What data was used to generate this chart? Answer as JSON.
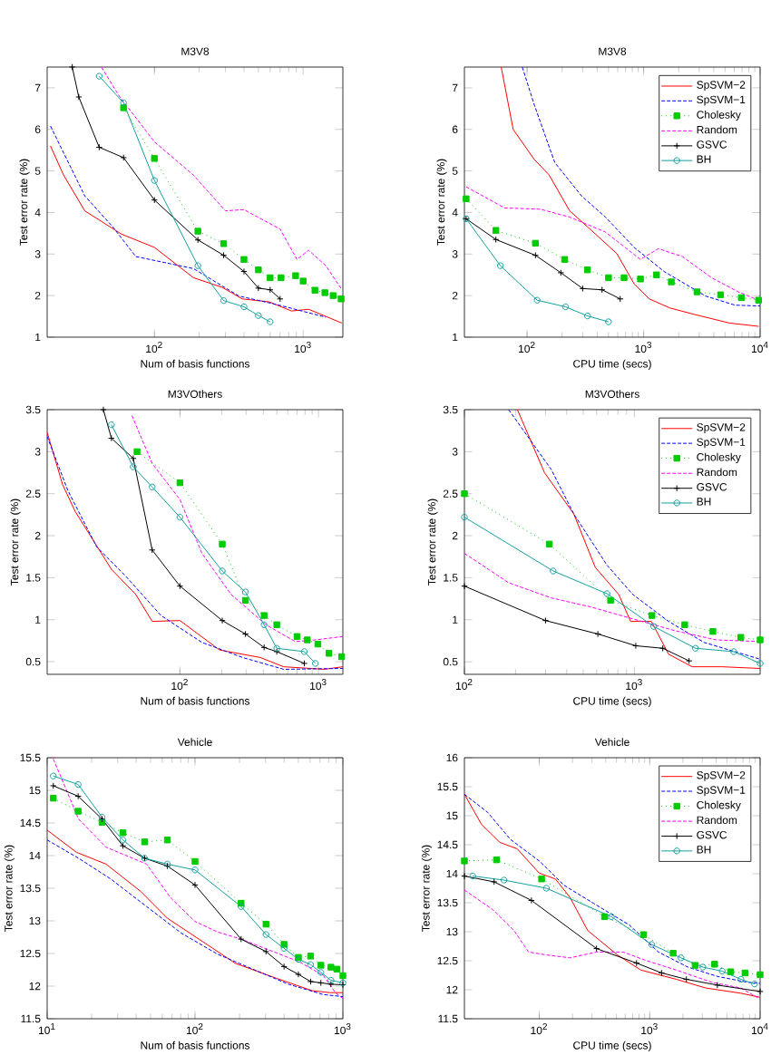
{
  "chart_data": [
    {
      "type": "line",
      "title": "M3V8",
      "xlabel": "Num of basis functions",
      "ylabel": "Test error rate (%)",
      "log": "x",
      "xlim": [
        19,
        1850
      ],
      "ylim": [
        1,
        7.5
      ],
      "xticks": [
        {
          "value": 100,
          "label": "10$^{2}$"
        },
        {
          "value": 1000,
          "label": "10$^{3}$"
        }
      ],
      "yticks": [
        1,
        2,
        3,
        4,
        5,
        6,
        7
      ],
      "series": [
        {
          "color": "#ff0000",
          "line_style": "solid",
          "marker": "none",
          "x": [
            20,
            24.5,
            34,
            60,
            100,
            183,
            285,
            390,
            590,
            835,
            1090,
            1820
          ],
          "values": [
            5.6,
            4.9,
            4.04,
            3.48,
            3.16,
            2.43,
            2.2,
            1.92,
            1.85,
            1.63,
            1.67,
            1.34
          ]
        },
        {
          "color": "#0000ff",
          "line_style": "dashed",
          "marker": "none",
          "x": [
            20,
            34,
            52,
            75,
            183,
            370,
            690,
            1420
          ],
          "values": [
            6.08,
            4.4,
            3.67,
            2.94,
            2.65,
            1.99,
            1.77,
            1.48
          ]
        },
        {
          "color": "#00cc00",
          "line_style": "dotted",
          "marker": "square",
          "x": [
            62,
            100,
            196,
            292,
            400,
            500,
            600,
            710,
            890,
            1000,
            1200,
            1400,
            1590,
            1800
          ],
          "values": [
            6.52,
            5.3,
            3.55,
            3.25,
            2.87,
            2.62,
            2.43,
            2.43,
            2.48,
            2.35,
            2.13,
            2.07,
            2.0,
            1.92
          ]
        },
        {
          "color": "#ff00ff",
          "line_style": "dashed",
          "marker": "none",
          "x": [
            44,
            58,
            100,
            183,
            300,
            400,
            700,
            910,
            1090,
            1420,
            1800
          ],
          "values": [
            7.5,
            6.8,
            5.7,
            4.9,
            4.04,
            4.07,
            3.6,
            2.87,
            3.09,
            2.72,
            2.17
          ]
        },
        {
          "color": "#000000",
          "line_style": "solid",
          "marker": "cross",
          "x": [
            28,
            31,
            42.5,
            62,
            100,
            196,
            292,
            400,
            500,
            600,
            700
          ],
          "values": [
            7.5,
            6.78,
            5.57,
            5.32,
            4.3,
            3.34,
            2.97,
            2.58,
            2.18,
            2.14,
            1.92
          ]
        },
        {
          "color": "#13a0a0",
          "line_style": "solid",
          "marker": "circle",
          "x": [
            42.5,
            62,
            100,
            196,
            292,
            400,
            500,
            600
          ],
          "values": [
            7.28,
            6.64,
            4.77,
            2.72,
            1.88,
            1.73,
            1.52,
            1.37
          ]
        }
      ]
    },
    {
      "type": "line",
      "title": "M3V8",
      "xlabel": "CPU time (secs)",
      "ylabel": "Test error rate (%)",
      "log": "x",
      "xlim": [
        29,
        10000
      ],
      "ylim": [
        1,
        7.5
      ],
      "legend": "top right",
      "xticks": [
        {
          "value": 100,
          "label": "10$^{2}$"
        },
        {
          "value": 1000,
          "label": "10$^{3}$"
        },
        {
          "value": 10000,
          "label": "10$^{4}$"
        }
      ],
      "yticks": [
        1,
        2,
        3,
        4,
        5,
        6,
        7
      ],
      "series": [
        {
          "name": "SpSVM−2",
          "color": "#ff0000",
          "line_style": "solid",
          "marker": "none",
          "x": [
            60,
            76,
            115,
            154,
            232,
            370,
            590,
            830,
            1120,
            1690,
            2700,
            5450,
            9700
          ],
          "values": [
            7.5,
            6.0,
            5.28,
            4.91,
            4.04,
            3.53,
            3.01,
            2.28,
            1.92,
            1.7,
            1.55,
            1.34,
            1.26
          ]
        },
        {
          "name": "SpSVM−1",
          "color": "#0000ff",
          "line_style": "dashed",
          "marker": "none",
          "x": [
            91,
            115,
            173,
            293,
            470,
            830,
            1500,
            3400,
            6100,
            10000
          ],
          "values": [
            7.5,
            6.6,
            5.2,
            4.4,
            3.89,
            3.16,
            2.58,
            1.99,
            1.77,
            1.75
          ]
        },
        {
          "name": "Cholesky",
          "color": "#00cc00",
          "line_style": "dotted",
          "marker": "square",
          "x": [
            30,
            54,
            118,
            210,
            330,
            500,
            680,
            940,
            1290,
            1730,
            2870,
            4580,
            6900,
            9700
          ],
          "values": [
            4.33,
            3.57,
            3.26,
            2.87,
            2.62,
            2.43,
            2.43,
            2.4,
            2.5,
            2.33,
            2.09,
            2.02,
            1.95,
            1.89
          ]
        },
        {
          "name": "Random",
          "color": "#ff00ff",
          "line_style": "dashed",
          "marker": "none",
          "x": [
            30,
            64,
            130,
            232,
            470,
            940,
            1340,
            2150,
            3830,
            6500,
            9700
          ],
          "values": [
            4.62,
            4.11,
            4.08,
            3.89,
            3.53,
            2.87,
            3.13,
            2.94,
            2.43,
            2.09,
            1.89
          ]
        },
        {
          "name": "GSVC",
          "color": "#000000",
          "line_style": "solid",
          "marker": "cross",
          "x": [
            30,
            54,
            118,
            195,
            300,
            440,
            630
          ],
          "values": [
            3.85,
            3.35,
            2.97,
            2.55,
            2.17,
            2.14,
            1.92
          ]
        },
        {
          "name": "BH",
          "color": "#13a0a0",
          "line_style": "solid",
          "marker": "circle",
          "x": [
            30,
            59,
            122,
            214,
            330,
            500
          ],
          "values": [
            3.85,
            2.72,
            1.89,
            1.73,
            1.51,
            1.37
          ]
        }
      ]
    },
    {
      "type": "line",
      "title": "M3VOthers",
      "xlabel": "Num of basis functions",
      "ylabel": "Test error rate (%)",
      "log": "x",
      "xlim": [
        11,
        1500
      ],
      "ylim": [
        0.35,
        3.5
      ],
      "xticks": [
        {
          "value": 100,
          "label": "10$^{2}$"
        },
        {
          "value": 1000,
          "label": "10$^{3}$"
        }
      ],
      "yticks": [
        0.5,
        1,
        1.5,
        2,
        2.5,
        3,
        3.5
      ],
      "series": [
        {
          "color": "#ff0000",
          "line_style": "solid",
          "marker": "none",
          "x": [
            11,
            14.2,
            17.5,
            32,
            48,
            63,
            100,
            193,
            380,
            560,
            1100,
            1500
          ],
          "values": [
            3.23,
            2.61,
            2.29,
            1.6,
            1.3,
            0.98,
            0.99,
            0.64,
            0.55,
            0.44,
            0.41,
            0.44
          ]
        },
        {
          "color": "#0000ff",
          "line_style": "dashed",
          "marker": "none",
          "x": [
            11,
            15.5,
            25,
            41,
            73,
            144,
            284,
            560,
            1500
          ],
          "values": [
            3.18,
            2.54,
            1.87,
            1.51,
            1.05,
            0.73,
            0.55,
            0.41,
            0.42
          ]
        },
        {
          "color": "#00cc00",
          "line_style": "dotted",
          "marker": "square",
          "x": [
            49,
            100,
            202,
            297,
            405,
            500,
            700,
            830,
            990,
            1190,
            1470
          ],
          "values": [
            3.0,
            2.63,
            1.9,
            1.23,
            1.05,
            0.94,
            0.8,
            0.76,
            0.71,
            0.6,
            0.56
          ]
        },
        {
          "color": "#ff00ff",
          "line_style": "dashed",
          "marker": "none",
          "x": [
            45,
            63,
            100,
            144,
            234,
            418,
            680,
            950,
            1500
          ],
          "values": [
            3.43,
            2.86,
            2.43,
            1.79,
            1.3,
            0.94,
            0.74,
            0.76,
            0.8
          ]
        },
        {
          "color": "#000000",
          "line_style": "solid",
          "marker": "cross",
          "x": [
            28,
            32,
            46,
            63,
            100,
            202,
            297,
            405,
            500,
            790
          ],
          "values": [
            3.5,
            3.16,
            2.92,
            1.83,
            1.4,
            0.99,
            0.83,
            0.67,
            0.62,
            0.48
          ]
        },
        {
          "color": "#13a0a0",
          "line_style": "solid",
          "marker": "circle",
          "x": [
            32,
            46,
            63,
            100,
            202,
            297,
            405,
            500,
            790,
            950
          ],
          "values": [
            3.32,
            2.82,
            2.58,
            2.22,
            1.58,
            1.33,
            0.94,
            0.66,
            0.62,
            0.48
          ]
        }
      ]
    },
    {
      "type": "line",
      "title": "M3VOthers",
      "xlabel": "CPU time (secs)",
      "ylabel": "Test error rate (%)",
      "log": "x",
      "xlim": [
        100,
        5500
      ],
      "ylim": [
        0.35,
        3.5
      ],
      "legend": "top right",
      "xticks": [
        {
          "value": 100,
          "label": "10$^{2}$"
        },
        {
          "value": 1000,
          "label": "10$^{3}$"
        }
      ],
      "yticks": [
        0.5,
        1,
        1.5,
        2,
        2.5,
        3,
        3.5
      ],
      "series": [
        {
          "name": "SpSVM−2",
          "color": "#ff0000",
          "line_style": "solid",
          "marker": "none",
          "x": [
            205,
            296,
            440,
            590,
            810,
            950,
            1260,
            1590,
            2190,
            3290,
            5500
          ],
          "values": [
            3.5,
            2.75,
            2.26,
            1.62,
            1.3,
            0.98,
            0.98,
            0.59,
            0.44,
            0.44,
            0.42
          ]
        },
        {
          "name": "SpSVM−1",
          "color": "#0000ff",
          "line_style": "dashed",
          "marker": "none",
          "x": [
            182,
            324,
            440,
            690,
            980,
            1590,
            2570,
            5500
          ],
          "values": [
            3.5,
            2.79,
            2.26,
            1.65,
            1.3,
            0.98,
            0.73,
            0.53
          ]
        },
        {
          "name": "Cholesky",
          "color": "#00cc00",
          "line_style": "dotted",
          "marker": "square",
          "x": [
            100,
            316,
            725,
            1270,
            1980,
            2900,
            4230,
            5500
          ],
          "values": [
            2.5,
            1.9,
            1.23,
            1.05,
            0.94,
            0.86,
            0.79,
            0.76
          ]
        },
        {
          "name": "Random",
          "color": "#ff00ff",
          "line_style": "dashed",
          "marker": "none",
          "x": [
            100,
            182,
            324,
            560,
            980,
            1730,
            3030,
            5500
          ],
          "values": [
            1.79,
            1.44,
            1.26,
            1.15,
            1.01,
            0.87,
            0.76,
            0.74
          ]
        },
        {
          "name": "GSVC",
          "color": "#000000",
          "line_style": "solid",
          "marker": "cross",
          "x": [
            100,
            300,
            610,
            1020,
            1470,
            2100
          ],
          "values": [
            1.4,
            0.99,
            0.83,
            0.69,
            0.66,
            0.51
          ]
        },
        {
          "name": "BH",
          "color": "#13a0a0",
          "line_style": "solid",
          "marker": "circle",
          "x": [
            100,
            333,
            690,
            1300,
            2290,
            3850,
            5500
          ],
          "values": [
            2.22,
            1.58,
            1.31,
            0.92,
            0.66,
            0.62,
            0.48
          ]
        }
      ]
    },
    {
      "type": "line",
      "title": "Vehicle",
      "xlabel": "Num of basis functions",
      "ylabel": "Test error rate (%)",
      "log": "x",
      "xlim": [
        10,
        1000
      ],
      "ylim": [
        11.5,
        15.5
      ],
      "xticks": [
        {
          "value": 10,
          "label": "10$^{1}$"
        },
        {
          "value": 100,
          "label": "10$^{2}$"
        },
        {
          "value": 1000,
          "label": "10$^{3}$"
        }
      ],
      "yticks": [
        11.5,
        12,
        12.5,
        13,
        13.5,
        14,
        14.5,
        15,
        15.5
      ],
      "series": [
        {
          "color": "#ff0000",
          "line_style": "solid",
          "marker": "none",
          "x": [
            10,
            15.8,
            25,
            43,
            65,
            100,
            187,
            355,
            620,
            815,
            1000
          ],
          "values": [
            14.39,
            14.05,
            13.87,
            13.45,
            13.04,
            12.76,
            12.35,
            12.12,
            11.93,
            11.9,
            11.9
          ]
        },
        {
          "color": "#0000ff",
          "line_style": "dashed",
          "marker": "none",
          "x": [
            10,
            16.3,
            27,
            47,
            81,
            142,
            246,
            427,
            740,
            1000
          ],
          "values": [
            14.24,
            13.96,
            13.64,
            13.22,
            12.81,
            12.49,
            12.26,
            12.03,
            11.87,
            11.84
          ]
        },
        {
          "color": "#00cc00",
          "line_style": "dotted",
          "marker": "square",
          "x": [
            11,
            16.2,
            23.5,
            32.5,
            45.6,
            65,
            100,
            205,
            302,
            400,
            500,
            605,
            710,
            830,
            910,
            1000
          ],
          "values": [
            14.88,
            14.68,
            14.51,
            14.35,
            14.21,
            14.24,
            13.91,
            13.27,
            12.95,
            12.64,
            12.44,
            12.46,
            12.32,
            12.29,
            12.26,
            12.16
          ]
        },
        {
          "color": "#ff00ff",
          "line_style": "dashed",
          "marker": "none",
          "x": [
            11,
            12.9,
            16.3,
            25,
            47,
            68,
            100,
            142,
            205,
            355,
            510,
            740,
            890,
            1000
          ],
          "values": [
            15.48,
            15.11,
            14.56,
            14.13,
            13.87,
            13.36,
            12.99,
            12.83,
            12.72,
            12.51,
            12.37,
            12.16,
            11.9,
            11.81
          ]
        },
        {
          "color": "#000000",
          "line_style": "solid",
          "marker": "cross",
          "x": [
            11,
            16.2,
            23.5,
            32.5,
            45.6,
            65,
            100,
            205,
            302,
            400,
            500,
            605,
            710,
            830,
            1000
          ],
          "values": [
            15.07,
            14.91,
            14.56,
            14.15,
            13.96,
            13.84,
            13.55,
            12.72,
            12.53,
            12.3,
            12.18,
            12.07,
            12.05,
            12.03,
            12.02
          ]
        },
        {
          "color": "#13a0a0",
          "line_style": "solid",
          "marker": "circle",
          "x": [
            11,
            16.2,
            23.5,
            32.5,
            45.6,
            65,
            100,
            205,
            302,
            400,
            500,
            605,
            710,
            830,
            1000
          ],
          "values": [
            15.22,
            15.09,
            14.59,
            14.24,
            13.96,
            13.87,
            13.78,
            13.22,
            12.79,
            12.58,
            12.41,
            12.33,
            12.21,
            12.09,
            12.05
          ]
        }
      ]
    },
    {
      "type": "line",
      "title": "Vehicle",
      "xlabel": "CPU time (secs)",
      "ylabel": "Test error rate (%)",
      "log": "x",
      "xlim": [
        21,
        10000
      ],
      "ylim": [
        11.5,
        16
      ],
      "legend": "top right",
      "xticks": [
        {
          "value": 100,
          "label": "10$^{2}$"
        },
        {
          "value": 1000,
          "label": "10$^{3}$"
        },
        {
          "value": 10000,
          "label": "10$^{4}$"
        }
      ],
      "yticks": [
        11.5,
        12,
        12.5,
        13,
        13.5,
        14,
        14.5,
        15,
        15.5,
        16
      ],
      "series": [
        {
          "name": "SpSVM−2",
          "color": "#ff0000",
          "line_style": "solid",
          "marker": "none",
          "x": [
            21,
            30,
            44,
            63,
            100,
            140,
            190,
            275,
            510,
            830,
            1740,
            3220,
            6700,
            10000
          ],
          "values": [
            15.37,
            14.85,
            14.54,
            14.43,
            14.01,
            13.91,
            13.59,
            13.02,
            12.6,
            12.34,
            12.18,
            12.03,
            11.94,
            11.87
          ]
        },
        {
          "name": "SpSVM−1",
          "color": "#0000ff",
          "line_style": "dashed",
          "marker": "none",
          "x": [
            21,
            34,
            55,
            100,
            168,
            310,
            650,
            1200,
            2220,
            4100,
            7600,
            10000
          ],
          "values": [
            15.37,
            15.06,
            14.59,
            14.22,
            13.8,
            13.49,
            13.12,
            12.65,
            12.39,
            12.23,
            12.13,
            12.11
          ]
        },
        {
          "name": "Cholesky",
          "color": "#00cc00",
          "line_style": "dotted",
          "marker": "square",
          "x": [
            21,
            41,
            105,
            390,
            880,
            1630,
            2580,
            3870,
            5400,
            7300,
            10000
          ],
          "values": [
            14.22,
            14.24,
            13.91,
            13.26,
            12.95,
            12.63,
            12.42,
            12.44,
            12.31,
            12.29,
            12.26
          ]
        },
        {
          "name": "Random",
          "color": "#ff00ff",
          "line_style": "dashed",
          "marker": "none",
          "x": [
            21,
            38,
            59,
            80,
            116,
            190,
            330,
            575,
            940,
            1740,
            3630,
            6700,
            10000
          ],
          "values": [
            13.72,
            13.38,
            13.02,
            12.65,
            12.6,
            12.55,
            12.65,
            12.65,
            12.5,
            12.34,
            12.13,
            12.03,
            11.84
          ]
        },
        {
          "name": "GSVC",
          "color": "#000000",
          "line_style": "solid",
          "marker": "cross",
          "x": [
            21,
            39,
            85,
            330,
            760,
            1280,
            2150,
            4100,
            10000
          ],
          "values": [
            13.96,
            13.86,
            13.54,
            12.71,
            12.46,
            12.29,
            12.18,
            12.08,
            11.97
          ]
        },
        {
          "name": "BH",
          "color": "#13a0a0",
          "line_style": "solid",
          "marker": "circle",
          "x": [
            25,
            48,
            116,
            450,
            1040,
            1920,
            3030,
            4540,
            6700,
            8900
          ],
          "values": [
            13.96,
            13.89,
            13.75,
            13.26,
            12.78,
            12.55,
            12.39,
            12.32,
            12.18,
            12.1
          ]
        }
      ]
    }
  ]
}
